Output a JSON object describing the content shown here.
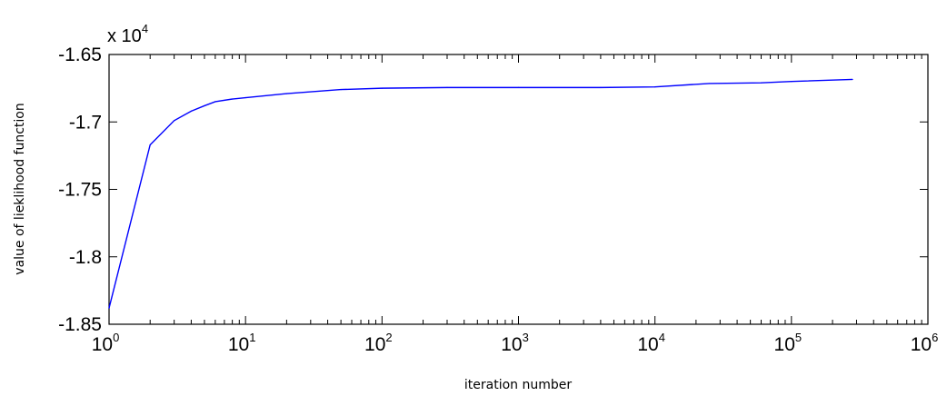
{
  "chart_data": {
    "type": "line",
    "xlabel": "iteration number",
    "ylabel": "value of lieklihood function",
    "x_scale": "log",
    "xlim": [
      1,
      1000000
    ],
    "ylim": [
      -18500,
      -16500
    ],
    "y_multiplier": {
      "base": "x 10",
      "exponent": "4"
    },
    "x_ticks": [
      {
        "base": "10",
        "exp": "0",
        "value": 1
      },
      {
        "base": "10",
        "exp": "1",
        "value": 10
      },
      {
        "base": "10",
        "exp": "2",
        "value": 100
      },
      {
        "base": "10",
        "exp": "3",
        "value": 1000
      },
      {
        "base": "10",
        "exp": "4",
        "value": 10000
      },
      {
        "base": "10",
        "exp": "5",
        "value": 100000
      },
      {
        "base": "10",
        "exp": "6",
        "value": 1000000
      }
    ],
    "y_ticks": [
      {
        "label": "-1.65",
        "value": -16500
      },
      {
        "label": "-1.7",
        "value": -17000
      },
      {
        "label": "-1.75",
        "value": -17500
      },
      {
        "label": "-1.8",
        "value": -18000
      },
      {
        "label": "-1.85",
        "value": -18500
      }
    ],
    "grid": false,
    "series": [
      {
        "color": "#0000ff",
        "x": [
          1,
          2,
          3,
          4,
          5,
          6,
          8,
          10,
          20,
          50,
          100,
          300,
          1000,
          4000,
          10000,
          25000,
          60000,
          100000,
          280000
        ],
        "y": [
          -18380,
          -17170,
          -16990,
          -16920,
          -16880,
          -16850,
          -16830,
          -16820,
          -16790,
          -16760,
          -16750,
          -16745,
          -16745,
          -16745,
          -16740,
          -16715,
          -16710,
          -16700,
          -16685
        ]
      }
    ]
  }
}
